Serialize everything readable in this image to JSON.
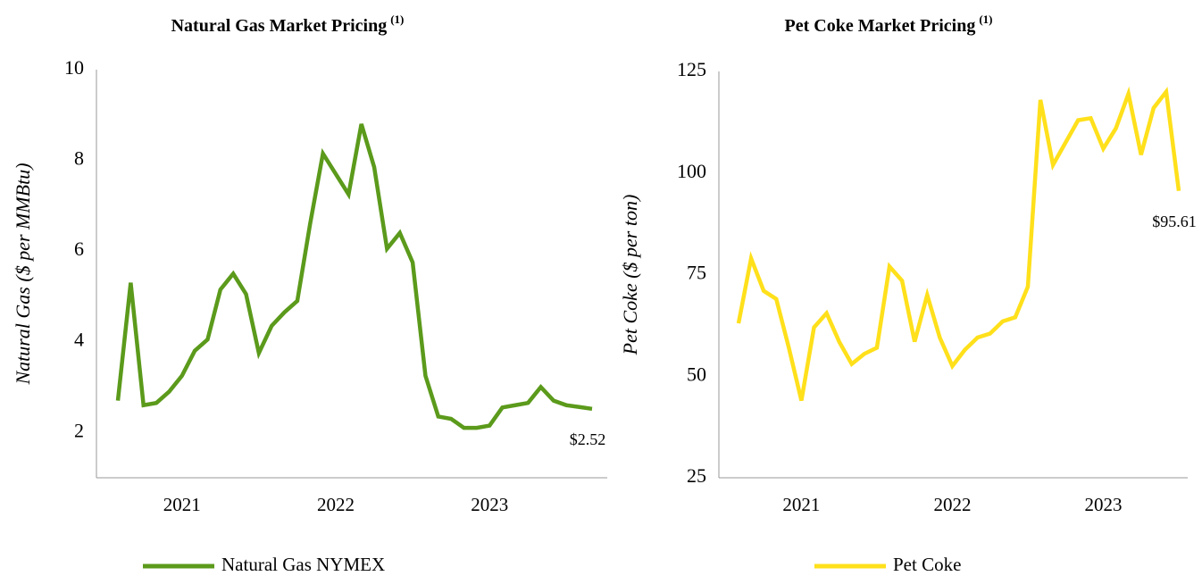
{
  "chart_data": [
    {
      "type": "line",
      "title": "Natural Gas Market Pricing",
      "title_superscript": "(1)",
      "y_label": "Natural Gas ($ per MMBtu)",
      "categories": [
        null,
        null,
        null,
        null,
        null,
        "2021",
        null,
        null,
        null,
        null,
        null,
        null,
        null,
        null,
        null,
        null,
        null,
        "2022",
        null,
        null,
        null,
        null,
        null,
        null,
        null,
        null,
        null,
        null,
        null,
        "2023",
        null,
        null,
        null,
        null,
        null,
        null,
        null,
        null
      ],
      "series": [
        {
          "name": "Natural Gas NYMEX",
          "color": "#5b9a1b",
          "values": [
            2.7,
            5.3,
            2.6,
            2.65,
            2.9,
            3.25,
            3.8,
            4.05,
            5.15,
            5.5,
            5.05,
            3.75,
            4.35,
            4.65,
            4.9,
            6.6,
            8.15,
            7.7,
            7.25,
            8.8,
            7.85,
            6.05,
            6.4,
            5.75,
            3.25,
            2.35,
            2.3,
            2.1,
            2.1,
            2.15,
            2.55,
            2.6,
            2.65,
            3.0,
            2.7,
            2.6,
            2.56,
            2.52
          ],
          "value_labels": [
            null,
            null,
            null,
            null,
            null,
            null,
            null,
            null,
            null,
            null,
            null,
            null,
            null,
            null,
            null,
            null,
            null,
            null,
            null,
            null,
            null,
            null,
            null,
            null,
            null,
            null,
            null,
            null,
            null,
            null,
            null,
            null,
            null,
            null,
            null,
            null,
            null,
            "$2.52"
          ]
        }
      ],
      "ylim": [
        1,
        10
      ],
      "yticks": [
        2,
        4,
        6,
        8,
        10
      ],
      "grid": false
    },
    {
      "type": "line",
      "title": "Pet Coke Market Pricing",
      "title_superscript": "(1)",
      "y_label": "Pet Coke ($ per ton)",
      "categories": [
        null,
        null,
        null,
        null,
        null,
        "2021",
        null,
        null,
        null,
        null,
        null,
        null,
        null,
        null,
        null,
        null,
        null,
        "2022",
        null,
        null,
        null,
        null,
        null,
        null,
        null,
        null,
        null,
        null,
        null,
        "2023",
        null,
        null,
        null,
        null,
        null,
        null
      ],
      "series": [
        {
          "name": "Pet Coke",
          "color": "#ffe01b",
          "values": [
            63,
            79,
            71,
            69,
            57,
            44,
            62,
            65.5,
            58.5,
            53,
            55.5,
            57,
            77,
            73.5,
            58.5,
            70,
            59.5,
            52.5,
            56.5,
            59.5,
            60.5,
            63.5,
            64.5,
            72,
            118,
            102,
            107.5,
            113,
            113.5,
            106,
            111,
            119.5,
            104.5,
            116,
            120,
            95.61
          ],
          "value_labels": [
            null,
            null,
            null,
            null,
            null,
            null,
            null,
            null,
            null,
            null,
            null,
            null,
            null,
            null,
            null,
            null,
            null,
            null,
            null,
            null,
            null,
            null,
            null,
            null,
            null,
            null,
            null,
            null,
            null,
            null,
            null,
            null,
            null,
            null,
            null,
            "$95.61"
          ]
        }
      ],
      "ylim": [
        25,
        125
      ],
      "yticks": [
        25,
        50,
        75,
        100,
        125
      ],
      "grid": false
    }
  ]
}
